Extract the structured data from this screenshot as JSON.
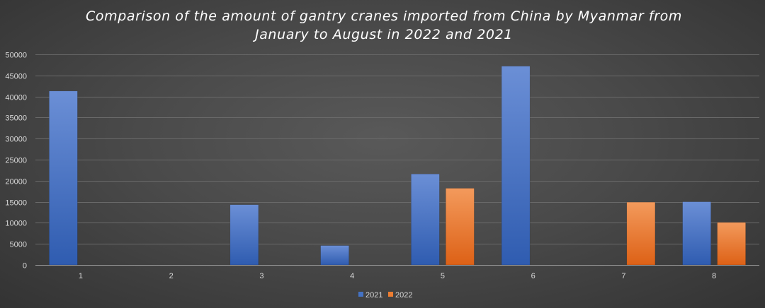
{
  "chart_data": {
    "type": "bar",
    "title_lines": [
      "Comparison of the amount of gantry cranes imported from China by Myanmar from",
      "January to August in 2022 and 2021"
    ],
    "categories": [
      "1",
      "2",
      "3",
      "4",
      "5",
      "6",
      "7",
      "8"
    ],
    "series": [
      {
        "name": "2021",
        "color": "#4472c4",
        "values": [
          41300,
          0,
          14300,
          4600,
          21600,
          47200,
          0,
          15000
        ]
      },
      {
        "name": "2022",
        "color": "#ed7d31",
        "values": [
          0,
          0,
          0,
          0,
          18200,
          0,
          14900,
          10100
        ]
      }
    ],
    "ylim": [
      0,
      50000
    ],
    "yticks": [
      "0",
      "5000",
      "10000",
      "15000",
      "20000",
      "25000",
      "30000",
      "35000",
      "40000",
      "45000",
      "50000"
    ],
    "grid": true,
    "legend_position": "bottom"
  }
}
